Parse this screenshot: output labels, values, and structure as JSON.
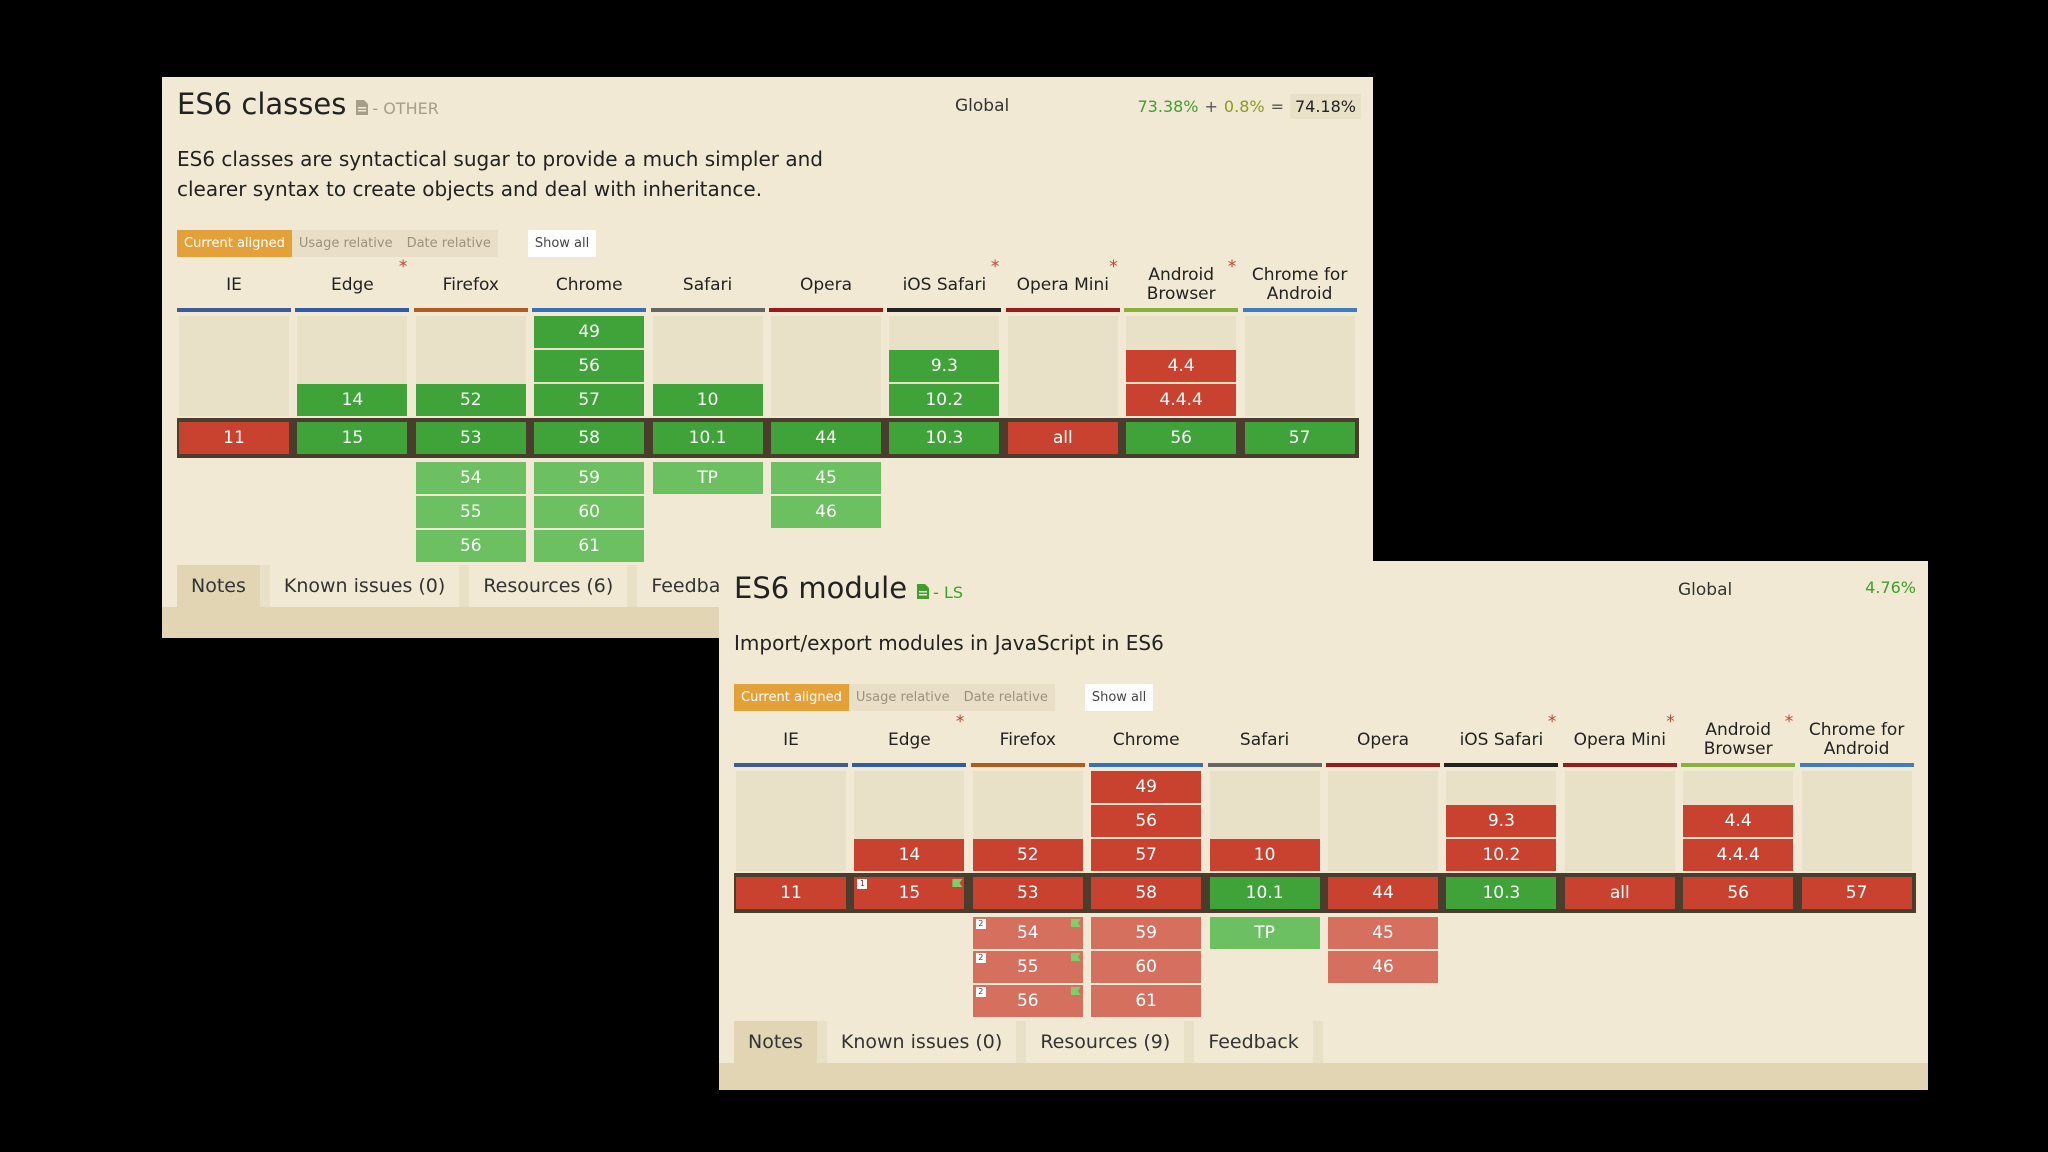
{
  "panels": [
    {
      "title": "ES6 classes",
      "category": "- OTHER",
      "category_color": "#a69e88",
      "scope": "Global",
      "usage": {
        "supported": "73.38%",
        "plus": "+",
        "partial": "0.8%",
        "equals": "=",
        "total": "74.18%"
      },
      "description_lines": [
        "ES6 classes are syntactical sugar to provide a much simpler and",
        "clearer syntax to create objects and deal with inheritance."
      ],
      "filters": [
        "Current aligned",
        "Usage relative",
        "Date relative"
      ],
      "show_all": "Show all",
      "tabs": [
        "Notes",
        "Known issues (0)",
        "Resources (6)",
        "Feedback"
      ]
    },
    {
      "title": "ES6 module",
      "category": "- LS",
      "category_color": "#3f9f2c",
      "scope": "Global",
      "usage": {
        "total": "4.76%"
      },
      "description_lines": [
        "Import/export modules in JavaScript in ES6"
      ],
      "filters": [
        "Current aligned",
        "Usage relative",
        "Date relative"
      ],
      "show_all": "Show all",
      "tabs": [
        "Notes",
        "Known issues (0)",
        "Resources (9)",
        "Feedback"
      ]
    }
  ],
  "browsers": [
    {
      "name": "IE",
      "color": "#3d5a99",
      "asterisk": false
    },
    {
      "name": "Edge",
      "color": "#2e5ca8",
      "asterisk": true
    },
    {
      "name": "Firefox",
      "color": "#b35a1d",
      "asterisk": false
    },
    {
      "name": "Chrome",
      "color": "#3670b8",
      "asterisk": false
    },
    {
      "name": "Safari",
      "color": "#666666",
      "asterisk": false
    },
    {
      "name": "Opera",
      "color": "#9a1b1b",
      "asterisk": false
    },
    {
      "name": "iOS Safari",
      "color": "#222222",
      "asterisk": true
    },
    {
      "name": "Opera Mini",
      "color": "#9a1b1b",
      "asterisk": true
    },
    {
      "name": "Android Browser",
      "color": "#88b33a",
      "asterisk": true
    },
    {
      "name": "Chrome for Android",
      "color": "#3d7dc4",
      "asterisk": false
    }
  ],
  "tables": [
    {
      "columns": [
        {
          "past": [],
          "current": {
            "v": "11",
            "s": "r"
          },
          "future": []
        },
        {
          "past": [
            {
              "v": "14",
              "s": "g"
            }
          ],
          "current": {
            "v": "15",
            "s": "g"
          },
          "future": []
        },
        {
          "past": [
            {
              "v": "52",
              "s": "g"
            }
          ],
          "current": {
            "v": "53",
            "s": "g"
          },
          "future": [
            {
              "v": "54",
              "s": "lg"
            },
            {
              "v": "55",
              "s": "lg"
            },
            {
              "v": "56",
              "s": "lg"
            }
          ]
        },
        {
          "past": [
            {
              "v": "49",
              "s": "g"
            },
            {
              "v": "56",
              "s": "g"
            },
            {
              "v": "57",
              "s": "g"
            }
          ],
          "current": {
            "v": "58",
            "s": "g"
          },
          "future": [
            {
              "v": "59",
              "s": "lg"
            },
            {
              "v": "60",
              "s": "lg"
            },
            {
              "v": "61",
              "s": "lg"
            }
          ]
        },
        {
          "past": [
            {
              "v": "10",
              "s": "g"
            }
          ],
          "current": {
            "v": "10.1",
            "s": "g"
          },
          "future": [
            {
              "v": "TP",
              "s": "lg"
            }
          ]
        },
        {
          "past": [],
          "current": {
            "v": "44",
            "s": "g"
          },
          "future": [
            {
              "v": "45",
              "s": "lg"
            },
            {
              "v": "46",
              "s": "lg"
            }
          ]
        },
        {
          "past": [
            {
              "v": "9.3",
              "s": "g"
            },
            {
              "v": "10.2",
              "s": "g"
            }
          ],
          "current": {
            "v": "10.3",
            "s": "g"
          },
          "future": []
        },
        {
          "past": [],
          "current": {
            "v": "all",
            "s": "r"
          },
          "future": []
        },
        {
          "past": [
            {
              "v": "4.4",
              "s": "r"
            },
            {
              "v": "4.4.4",
              "s": "r"
            }
          ],
          "current": {
            "v": "56",
            "s": "g"
          },
          "future": []
        },
        {
          "past": [],
          "current": {
            "v": "57",
            "s": "g"
          },
          "future": []
        }
      ]
    },
    {
      "columns": [
        {
          "past": [],
          "current": {
            "v": "11",
            "s": "r"
          },
          "future": []
        },
        {
          "past": [
            {
              "v": "14",
              "s": "r"
            }
          ],
          "current": {
            "v": "15",
            "s": "r",
            "note": "1",
            "flag": true
          },
          "future": []
        },
        {
          "past": [
            {
              "v": "52",
              "s": "r"
            }
          ],
          "current": {
            "v": "53",
            "s": "r"
          },
          "future": [
            {
              "v": "54",
              "s": "lr",
              "note": "2",
              "flag": true
            },
            {
              "v": "55",
              "s": "lr",
              "note": "2",
              "flag": true
            },
            {
              "v": "56",
              "s": "lr",
              "note": "2",
              "flag": true
            }
          ]
        },
        {
          "past": [
            {
              "v": "49",
              "s": "r"
            },
            {
              "v": "56",
              "s": "r"
            },
            {
              "v": "57",
              "s": "r"
            }
          ],
          "current": {
            "v": "58",
            "s": "r"
          },
          "future": [
            {
              "v": "59",
              "s": "lr"
            },
            {
              "v": "60",
              "s": "lr"
            },
            {
              "v": "61",
              "s": "lr"
            }
          ]
        },
        {
          "past": [
            {
              "v": "10",
              "s": "r"
            }
          ],
          "current": {
            "v": "10.1",
            "s": "g"
          },
          "future": [
            {
              "v": "TP",
              "s": "lg"
            }
          ]
        },
        {
          "past": [],
          "current": {
            "v": "44",
            "s": "r"
          },
          "future": [
            {
              "v": "45",
              "s": "lr"
            },
            {
              "v": "46",
              "s": "lr"
            }
          ]
        },
        {
          "past": [
            {
              "v": "9.3",
              "s": "r"
            },
            {
              "v": "10.2",
              "s": "r"
            }
          ],
          "current": {
            "v": "10.3",
            "s": "g"
          },
          "future": []
        },
        {
          "past": [],
          "current": {
            "v": "all",
            "s": "r"
          },
          "future": []
        },
        {
          "past": [
            {
              "v": "4.4",
              "s": "r"
            },
            {
              "v": "4.4.4",
              "s": "r"
            }
          ],
          "current": {
            "v": "56",
            "s": "r"
          },
          "future": []
        },
        {
          "past": [],
          "current": {
            "v": "57",
            "s": "r"
          },
          "future": []
        }
      ]
    }
  ]
}
